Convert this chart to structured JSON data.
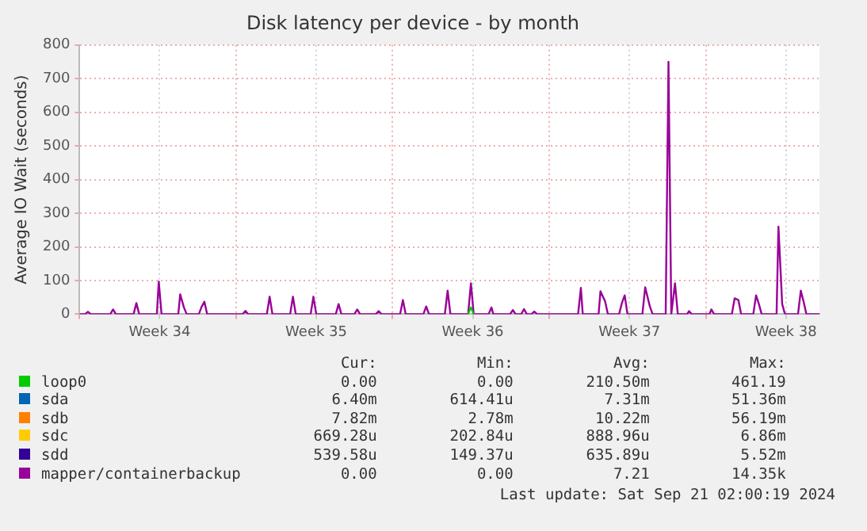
{
  "chart_data": {
    "type": "line",
    "title": "Disk latency per device - by month",
    "ylabel": "Average IO Wait (seconds)",
    "xlim": [
      "2024-08-19T00:00",
      "2024-09-21T02:00"
    ],
    "xticks": [
      {
        "value": "2024-08-19",
        "label": null
      },
      {
        "value": "2024-08-22T14:00",
        "label": "Week 34"
      },
      {
        "value": "2024-08-26",
        "label": null
      },
      {
        "value": "2024-08-29T14:00",
        "label": "Week 35"
      },
      {
        "value": "2024-09-02",
        "label": null
      },
      {
        "value": "2024-09-05T14:00",
        "label": "Week 36"
      },
      {
        "value": "2024-09-09",
        "label": null
      },
      {
        "value": "2024-09-12T14:00",
        "label": "Week 37"
      },
      {
        "value": "2024-09-16",
        "label": null
      },
      {
        "value": "2024-09-19T14:00",
        "label": "Week 38"
      }
    ],
    "ylim": [
      0,
      800
    ],
    "yticks": [
      0,
      100,
      200,
      300,
      400,
      500,
      600,
      700,
      800
    ],
    "grid": true,
    "legend": "bottom",
    "marker": "none",
    "line_style": "solid",
    "series": [
      {
        "name": "loop0",
        "color": "#00cc00",
        "x": [
          "2024-09-05T09:00",
          "2024-09-05T12:00",
          "2024-09-05T15:00"
        ],
        "values": [
          0,
          20,
          0
        ]
      },
      {
        "name": "sda",
        "color": "#0066b3"
      },
      {
        "name": "sdb",
        "color": "#ff8000"
      },
      {
        "name": "sdc",
        "color": "#ffcc00"
      },
      {
        "name": "sdd",
        "color": "#330099"
      },
      {
        "name": "mapper/containerbackup",
        "color": "#990099",
        "x": [
          "2024-08-19T00:00",
          "2024-08-19T06:00",
          "2024-08-19T09:00",
          "2024-08-19T12:00",
          "2024-08-20T09:00",
          "2024-08-20T12:00",
          "2024-08-20T15:00",
          "2024-08-21T10:00",
          "2024-08-21T13:00",
          "2024-08-21T16:00",
          "2024-08-22T11:00",
          "2024-08-22T13:00",
          "2024-08-22T16:00",
          "2024-08-23T10:00",
          "2024-08-23T12:00",
          "2024-08-23T16:00",
          "2024-08-23T19:00",
          "2024-08-24T08:00",
          "2024-08-24T11:00",
          "2024-08-24T14:00",
          "2024-08-24T17:00",
          "2024-08-26T07:00",
          "2024-08-26T10:00",
          "2024-08-26T13:00",
          "2024-08-27T09:00",
          "2024-08-27T12:00",
          "2024-08-27T15:00",
          "2024-08-28T10:00",
          "2024-08-28T13:00",
          "2024-08-28T16:00",
          "2024-08-29T08:00",
          "2024-08-29T11:00",
          "2024-08-29T14:00",
          "2024-08-30T11:00",
          "2024-08-30T14:00",
          "2024-08-30T17:00",
          "2024-08-31T07:00",
          "2024-08-31T10:00",
          "2024-08-31T13:00",
          "2024-09-01T06:00",
          "2024-09-01T09:00",
          "2024-09-01T12:00",
          "2024-09-02T08:00",
          "2024-09-02T11:00",
          "2024-09-02T14:00",
          "2024-09-03T09:00",
          "2024-09-03T12:00",
          "2024-09-03T15:00",
          "2024-09-04T08:00",
          "2024-09-04T11:00",
          "2024-09-04T14:00",
          "2024-09-05T09:00",
          "2024-09-05T12:00",
          "2024-09-05T15:00",
          "2024-09-06T07:00",
          "2024-09-06T10:00",
          "2024-09-06T12:00",
          "2024-09-07T06:00",
          "2024-09-07T09:00",
          "2024-09-07T12:00",
          "2024-09-07T18:00",
          "2024-09-07T21:00",
          "2024-09-08T00:00",
          "2024-09-08T05:00",
          "2024-09-08T08:00",
          "2024-09-08T11:00",
          "2024-09-10T07:00",
          "2024-09-10T10:00",
          "2024-09-10T12:00",
          "2024-09-11T05:00",
          "2024-09-11T07:00",
          "2024-09-11T12:00",
          "2024-09-11T15:00",
          "2024-09-12T03:00",
          "2024-09-12T06:00",
          "2024-09-12T09:00",
          "2024-09-12T12:00",
          "2024-09-13T04:00",
          "2024-09-13T07:00",
          "2024-09-13T12:00",
          "2024-09-13T15:00",
          "2024-09-14T05:00",
          "2024-09-14T08:00",
          "2024-09-14T11:00",
          "2024-09-14T15:00",
          "2024-09-14T18:00",
          "2024-09-15T04:00",
          "2024-09-15T06:00",
          "2024-09-15T09:00",
          "2024-09-16T04:00",
          "2024-09-16T06:00",
          "2024-09-16T09:00",
          "2024-09-17T04:00",
          "2024-09-17T07:00",
          "2024-09-17T11:00",
          "2024-09-17T14:00",
          "2024-09-18T03:00",
          "2024-09-18T06:00",
          "2024-09-18T09:00",
          "2024-09-18T12:00",
          "2024-09-19T04:00",
          "2024-09-19T06:00",
          "2024-09-19T10:00",
          "2024-09-19T13:00",
          "2024-09-20T03:00",
          "2024-09-20T06:00",
          "2024-09-20T09:00",
          "2024-09-20T12:00",
          "2024-09-21T02:00"
        ],
        "values": [
          0,
          0,
          7,
          0,
          0,
          14,
          0,
          0,
          33,
          0,
          0,
          97,
          0,
          0,
          59,
          20,
          0,
          0,
          22,
          37,
          0,
          0,
          10,
          0,
          0,
          52,
          0,
          0,
          52,
          0,
          0,
          52,
          0,
          0,
          30,
          0,
          0,
          14,
          0,
          0,
          9,
          0,
          0,
          42,
          0,
          0,
          23,
          0,
          0,
          70,
          0,
          0,
          92,
          0,
          0,
          20,
          0,
          0,
          12,
          0,
          0,
          15,
          0,
          0,
          8,
          0,
          0,
          78,
          0,
          0,
          68,
          38,
          0,
          0,
          33,
          56,
          0,
          0,
          80,
          23,
          0,
          0,
          750,
          0,
          92,
          0,
          0,
          9,
          0,
          0,
          14,
          0,
          0,
          47,
          42,
          0,
          0,
          56,
          30,
          0,
          0,
          260,
          30,
          0,
          0,
          70,
          37,
          0,
          0
        ]
      }
    ],
    "annotations": [
      "Cur:",
      "Min:",
      "Avg:",
      "Max:",
      "0.00",
      "0.00",
      "210.50m",
      "461.19",
      "6.40m",
      "614.41u",
      "7.31m",
      "51.36m",
      "7.82m",
      "2.78m",
      "10.22m",
      "56.19m",
      "669.28u",
      "202.84u",
      "888.96u",
      "6.86m",
      "539.58u",
      "149.37u",
      "635.89u",
      "5.52m",
      "0.00",
      "0.00",
      "7.21",
      "14.35k",
      "Last update: Sat Sep 21 02:00:19 2024"
    ]
  }
}
